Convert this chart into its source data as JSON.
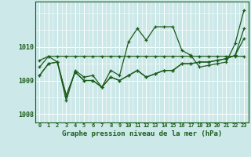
{
  "title": "Graphe pression niveau de la mer (hPa)",
  "bg_color": "#cce8e8",
  "plot_bg_color": "#cce8e8",
  "grid_color": "#ffffff",
  "line_color": "#1a5c1a",
  "xlim": [
    -0.5,
    23.5
  ],
  "ylim": [
    1007.75,
    1011.35
  ],
  "yticks": [
    1008,
    1009,
    1010
  ],
  "xticks": [
    0,
    1,
    2,
    3,
    4,
    5,
    6,
    7,
    8,
    9,
    10,
    11,
    12,
    13,
    14,
    15,
    16,
    17,
    18,
    19,
    20,
    21,
    22,
    23
  ],
  "series": [
    [
      1009.4,
      1009.72,
      1009.72,
      1009.72,
      1009.72,
      1009.72,
      1009.72,
      1009.72,
      1009.72,
      1009.72,
      1009.72,
      1009.72,
      1009.72,
      1009.72,
      1009.72,
      1009.72,
      1009.72,
      1009.72,
      1009.72,
      1009.72,
      1009.72,
      1009.72,
      1009.72,
      1009.72
    ],
    [
      1009.15,
      1009.5,
      1009.55,
      1008.55,
      1009.25,
      1009.0,
      1009.0,
      1008.8,
      1009.1,
      1009.0,
      1009.15,
      1009.3,
      1009.1,
      1009.2,
      1009.3,
      1009.3,
      1009.5,
      1009.5,
      1009.55,
      1009.55,
      1009.6,
      1009.65,
      1009.75,
      1010.55
    ],
    [
      1009.15,
      1009.5,
      1009.55,
      1008.55,
      1009.25,
      1009.0,
      1009.0,
      1008.8,
      1009.1,
      1009.0,
      1009.15,
      1009.3,
      1009.1,
      1009.2,
      1009.3,
      1009.3,
      1009.5,
      1009.5,
      1009.55,
      1009.55,
      1009.6,
      1009.65,
      1009.75,
      1010.25
    ],
    [
      1009.6,
      1009.72,
      1009.55,
      1008.4,
      1009.3,
      1009.1,
      1009.15,
      1008.8,
      1009.3,
      1009.15,
      1010.15,
      1010.55,
      1010.2,
      1010.6,
      1010.6,
      1010.6,
      1009.9,
      1009.75,
      1009.4,
      1009.45,
      1009.5,
      1009.55,
      1010.1,
      1011.1
    ]
  ],
  "marker": "+",
  "marker_size": 3.5,
  "linewidth": 0.9
}
